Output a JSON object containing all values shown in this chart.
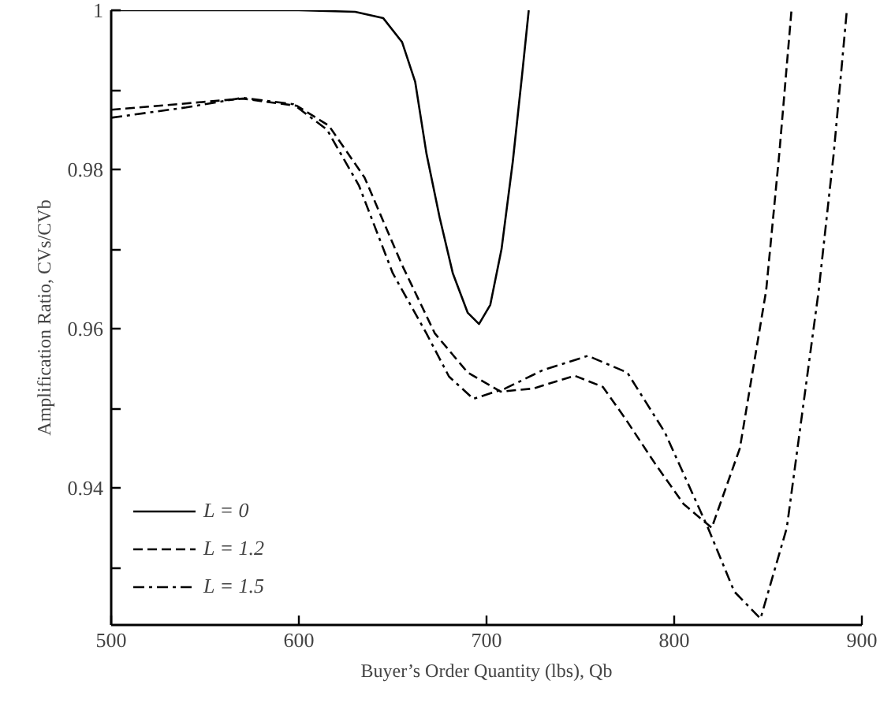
{
  "chart_data": {
    "type": "line",
    "xlabel": "Buyer’s Order Quantity (lbs), Qb",
    "ylabel": "Amplification Ratio, CVs/CVb",
    "xlim": [
      500,
      900
    ],
    "ylim": [
      0.9228,
      1.0
    ],
    "xticks": [
      500,
      600,
      700,
      800,
      900
    ],
    "yticks": [
      {
        "value": 0.93,
        "label": null
      },
      0.94,
      {
        "value": 0.95,
        "label": null
      },
      0.96,
      {
        "value": 0.97,
        "label": null
      },
      0.98,
      {
        "value": 0.99,
        "label": null
      },
      1
    ],
    "grid": false,
    "legend": "bottom left",
    "marker": "none",
    "series": [
      {
        "name": "L = 0",
        "color": "#000000",
        "line_style": "solid",
        "x": [
          500,
          600,
          630,
          645,
          655,
          662,
          668,
          675,
          682,
          690,
          696,
          702,
          708,
          714,
          719,
          722.5
        ],
        "values": [
          1,
          1,
          0.9998,
          0.999,
          0.996,
          0.991,
          0.982,
          0.974,
          0.967,
          0.962,
          0.9606,
          0.963,
          0.97,
          0.981,
          0.992,
          1.0
        ]
      },
      {
        "name": "L = 1.2",
        "color": "#000000",
        "line_style": "dashed",
        "x": [
          500,
          540,
          570,
          599,
          616,
          635,
          655,
          672.5,
          690,
          707.5,
          725,
          747,
          762,
          774,
          790,
          805,
          820,
          835,
          849,
          856,
          862.5
        ],
        "values": [
          0.9875,
          0.9883,
          0.9889,
          0.988,
          0.9855,
          0.979,
          0.968,
          0.9594,
          0.9545,
          0.9521,
          0.9525,
          0.9541,
          0.9527,
          0.9487,
          0.943,
          0.938,
          0.935,
          0.945,
          0.9648,
          0.982,
          1.0
        ]
      },
      {
        "name": "L = 1.5",
        "color": "#000000",
        "line_style": "dashdot",
        "x": [
          500,
          540,
          570,
          597,
          615,
          632,
          650,
          668,
          680,
          693,
          710,
          730,
          754,
          775,
          795,
          818,
          832,
          846,
          860,
          877,
          885,
          892
        ],
        "values": [
          0.9865,
          0.9878,
          0.989,
          0.9882,
          0.985,
          0.978,
          0.967,
          0.9594,
          0.954,
          0.9512,
          0.9525,
          0.9548,
          0.9566,
          0.9545,
          0.947,
          0.935,
          0.927,
          0.9236,
          0.935,
          0.9648,
          0.982,
          1.0
        ]
      }
    ]
  }
}
